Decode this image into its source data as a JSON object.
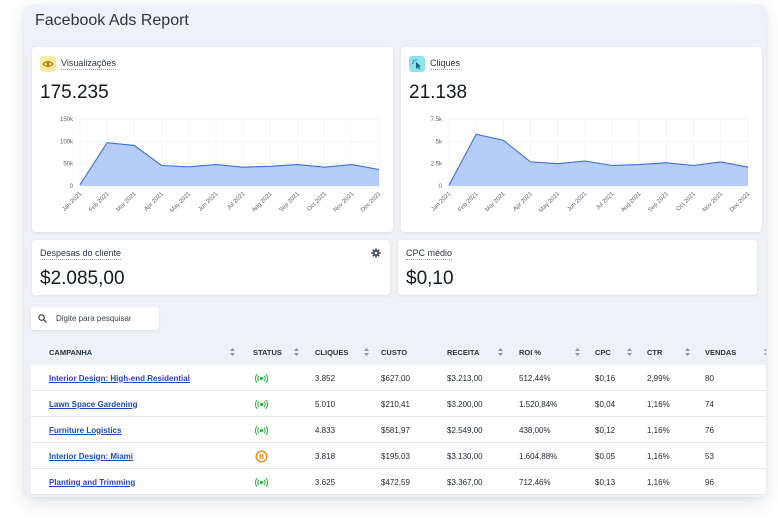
{
  "report_title": "Facebook Ads Report",
  "cards": {
    "views": {
      "label": "Visualizações",
      "value": "175.235",
      "icon": "eye-icon",
      "badge_color": "#fbe9a6",
      "icon_color": "#c48a00"
    },
    "clicks": {
      "label": "Cliques",
      "value": "21.138",
      "icon": "cursor-click-icon",
      "badge_color": "#8fe3ee",
      "icon_color": "#0b7f8f"
    },
    "spend": {
      "label": "Despesas do cliente",
      "value": "$2.085,00"
    },
    "cpc": {
      "label": "CPC médio",
      "value": "$0,10"
    }
  },
  "chart_data": [
    {
      "type": "area",
      "title": "Visualizações",
      "categories": [
        "Jan 2021",
        "Feb 2021",
        "Mar 2021",
        "Apr 2021",
        "May 2021",
        "Jun 2021",
        "Jul 2021",
        "Aug 2021",
        "Sep 2021",
        "Oct 2021",
        "Nov 2021",
        "Dec 2021"
      ],
      "values": [
        3000,
        97000,
        91000,
        46000,
        43000,
        48000,
        42000,
        44000,
        48000,
        42000,
        48000,
        37000
      ],
      "yticks": [
        "0",
        "50k",
        "100k",
        "150k"
      ],
      "ylim": [
        0,
        150000
      ],
      "color": "#3b6fd8",
      "fill": "#a9c6f6"
    },
    {
      "type": "area",
      "title": "Cliques",
      "categories": [
        "Jan 2021",
        "Feb 2021",
        "Mar 2021",
        "Apr 2021",
        "May 2021",
        "Jun 2021",
        "Jul 2021",
        "Aug 2021",
        "Sep 2021",
        "Oct 2021",
        "Nov 2021",
        "Dec 2021"
      ],
      "values": [
        100,
        5800,
        5100,
        2700,
        2500,
        2800,
        2300,
        2400,
        2600,
        2300,
        2700,
        2100
      ],
      "yticks": [
        "0",
        "2.5k",
        "5k",
        "7.5k"
      ],
      "ylim": [
        0,
        7500
      ],
      "color": "#3b6fd8",
      "fill": "#a9c6f6"
    }
  ],
  "search": {
    "placeholder": "Digite para pesquisar",
    "icon": "search-icon"
  },
  "table": {
    "headers": [
      "CAMPANHA",
      "STATUS",
      "CLIQUES",
      "CUSTO",
      "RECEITA",
      "ROI %",
      "CPC",
      "CTR",
      "VENDAS"
    ],
    "rows": [
      {
        "campanha": "Interior Design: High-end Residential",
        "status": "active",
        "cliques": "3.852",
        "custo": "$627,00",
        "receita": "$3.213,00",
        "roi": "512,44%",
        "cpc": "$0,16",
        "ctr": "2,99%",
        "vendas": "80"
      },
      {
        "campanha": "Lawn Space Gardening",
        "status": "active",
        "cliques": "5.010",
        "custo": "$210,41",
        "receita": "$3.200,00",
        "roi": "1.520,84%",
        "cpc": "$0,04",
        "ctr": "1,16%",
        "vendas": "74"
      },
      {
        "campanha": "Furniture Logistics",
        "status": "active",
        "cliques": "4.833",
        "custo": "$581,97",
        "receita": "$2.549,00",
        "roi": "438,00%",
        "cpc": "$0,12",
        "ctr": "1,16%",
        "vendas": "76"
      },
      {
        "campanha": "Interior Design: Miami",
        "status": "paused",
        "cliques": "3.818",
        "custo": "$195,03",
        "receita": "$3.130,00",
        "roi": "1.604,88%",
        "cpc": "$0,05",
        "ctr": "1,16%",
        "vendas": "53"
      },
      {
        "campanha": "Planting and Trimming",
        "status": "active",
        "cliques": "3.625",
        "custo": "$472,59",
        "receita": "$3.367,00",
        "roi": "712,46%",
        "cpc": "$0,13",
        "ctr": "1,16%",
        "vendas": "96"
      }
    ],
    "status_colors": {
      "active": "#2fb84a",
      "paused": "#f08a1c"
    }
  }
}
